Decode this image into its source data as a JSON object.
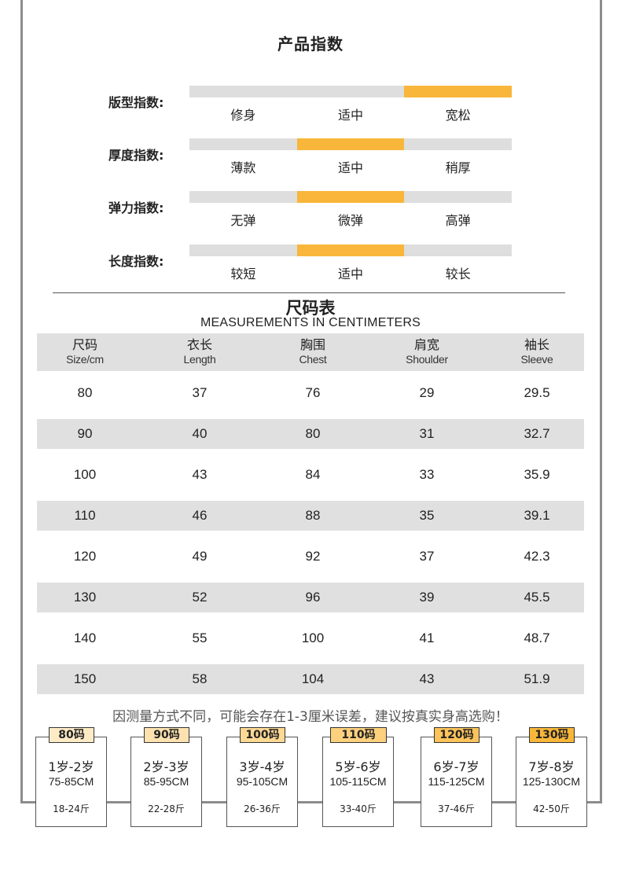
{
  "product_index": {
    "title": "产品指数",
    "rows": [
      {
        "label": "版型指数:",
        "options": [
          "修身",
          "适中",
          "宽松"
        ],
        "selected": 2
      },
      {
        "label": "厚度指数:",
        "options": [
          "薄款",
          "适中",
          "稍厚"
        ],
        "selected": 1
      },
      {
        "label": "弹力指数:",
        "options": [
          "无弹",
          "微弹",
          "高弹"
        ],
        "selected": 1
      },
      {
        "label": "长度指数:",
        "options": [
          "较短",
          "适中",
          "较长"
        ],
        "selected": 1
      }
    ]
  },
  "size_table": {
    "title": "尺码表",
    "subtitle": "MEASUREMENTS IN CENTIMETERS",
    "headers": [
      {
        "cn": "尺码",
        "en": "Size/cm"
      },
      {
        "cn": "衣长",
        "en": "Length"
      },
      {
        "cn": "胸围",
        "en": "Chest"
      },
      {
        "cn": "肩宽",
        "en": "Shoulder"
      },
      {
        "cn": "袖长",
        "en": "Sleeve"
      }
    ],
    "rows": [
      [
        "80",
        "37",
        "76",
        "29",
        "29.5"
      ],
      [
        "90",
        "40",
        "80",
        "31",
        "32.7"
      ],
      [
        "100",
        "43",
        "84",
        "33",
        "35.9"
      ],
      [
        "110",
        "46",
        "88",
        "35",
        "39.1"
      ],
      [
        "120",
        "49",
        "92",
        "37",
        "42.3"
      ],
      [
        "130",
        "52",
        "96",
        "39",
        "45.5"
      ],
      [
        "140",
        "55",
        "100",
        "41",
        "48.7"
      ],
      [
        "150",
        "58",
        "104",
        "43",
        "51.9"
      ]
    ],
    "note": "因测量方式不同，可能会存在1-3厘米误差，建议按真实身高选购！"
  },
  "size_cards": [
    {
      "tag": "80码",
      "age": "1岁-2岁",
      "height": "75-85CM",
      "weight": "18-24斤",
      "tag_color": "#fdebc6"
    },
    {
      "tag": "90码",
      "age": "2岁-3岁",
      "height": "85-95CM",
      "weight": "22-28斤",
      "tag_color": "#fde2b0"
    },
    {
      "tag": "100码",
      "age": "3岁-4岁",
      "height": "95-105CM",
      "weight": "26-36斤",
      "tag_color": "#fdd993"
    },
    {
      "tag": "110码",
      "age": "5岁-6岁",
      "height": "105-115CM",
      "weight": "33-40斤",
      "tag_color": "#fcd07d"
    },
    {
      "tag": "120码",
      "age": "6岁-7岁",
      "height": "115-125CM",
      "weight": "37-46斤",
      "tag_color": "#fbc35a"
    },
    {
      "tag": "130码",
      "age": "7岁-8岁",
      "height": "125-130CM",
      "weight": "42-50斤",
      "tag_color": "#f8b63a"
    }
  ],
  "colors": {
    "accent": "#f8b63a",
    "bar_bg": "#dedede",
    "row_shade": "#e0e0e0",
    "frame": "#8c8c8c"
  }
}
